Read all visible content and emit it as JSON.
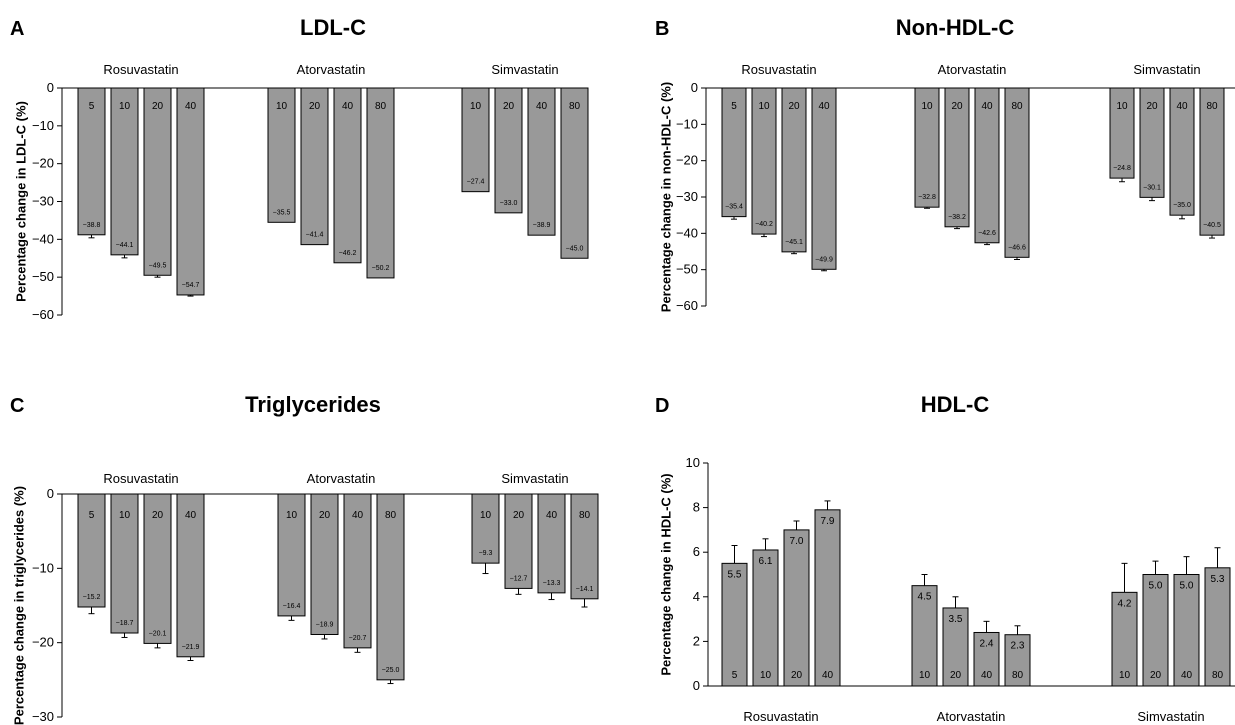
{
  "chart_data": [
    {
      "panel": "A",
      "title": "LDL-C",
      "type": "bar",
      "ylabel": "Percentage change in LDL-C (%)",
      "ylim": [
        -60,
        0
      ],
      "yticks": [
        0,
        -10,
        -20,
        -30,
        -40,
        -50,
        -60
      ],
      "ytick_labels": [
        "0",
        "−10",
        "−20",
        "−30",
        "−40",
        "−50",
        "−60"
      ],
      "groups": [
        {
          "name": "Rosuvastatin",
          "doses": [
            "5",
            "10",
            "20",
            "40"
          ],
          "values": [
            -38.8,
            -44.1,
            -49.5,
            -54.7
          ],
          "value_labels": [
            "−38.8",
            "−44.1",
            "−49.5",
            "−54.7"
          ],
          "errors": [
            0.8,
            0.8,
            0.5,
            0.3
          ]
        },
        {
          "name": "Atorvastatin",
          "doses": [
            "10",
            "20",
            "40",
            "80"
          ],
          "values": [
            -35.5,
            -41.4,
            -46.2,
            -50.2
          ],
          "value_labels": [
            "−35.5",
            "−41.4",
            "−46.2",
            "−50.2"
          ],
          "errors": [
            0,
            0,
            0,
            0
          ]
        },
        {
          "name": "Simvastatin",
          "doses": [
            "10",
            "20",
            "40",
            "80"
          ],
          "values": [
            -27.4,
            -33.0,
            -38.9,
            -45.0
          ],
          "value_labels": [
            "−27.4",
            "−33.0",
            "−38.9",
            "−45.0"
          ],
          "errors": [
            0,
            0,
            0,
            0
          ]
        }
      ]
    },
    {
      "panel": "B",
      "title": "Non-HDL-C",
      "type": "bar",
      "ylabel": "Percentage change in non-HDL-C (%)",
      "ylim": [
        -60,
        0
      ],
      "yticks": [
        0,
        -10,
        -20,
        -30,
        -40,
        -50,
        -60
      ],
      "ytick_labels": [
        "0",
        "−10",
        "−20",
        "−30",
        "−40",
        "−50",
        "−60"
      ],
      "groups": [
        {
          "name": "Rosuvastatin",
          "doses": [
            "5",
            "10",
            "20",
            "40"
          ],
          "values": [
            -35.4,
            -40.2,
            -45.1,
            -49.9
          ],
          "value_labels": [
            "−35.4",
            "−40.2",
            "−45.1",
            "−49.9"
          ],
          "errors": [
            0.7,
            0.7,
            0.5,
            0.4
          ]
        },
        {
          "name": "Atorvastatin",
          "doses": [
            "10",
            "20",
            "40",
            "80"
          ],
          "values": [
            -32.8,
            -38.2,
            -42.6,
            -46.6
          ],
          "value_labels": [
            "−32.8",
            "−38.2",
            "−42.6",
            "−46.6"
          ],
          "errors": [
            0.3,
            0.5,
            0.5,
            0.6
          ]
        },
        {
          "name": "Simvastatin",
          "doses": [
            "10",
            "20",
            "40",
            "80"
          ],
          "values": [
            -24.8,
            -30.1,
            -35.0,
            -40.5
          ],
          "value_labels": [
            "−24.8",
            "−30.1",
            "−35.0",
            "−40.5"
          ],
          "errors": [
            1.0,
            0.9,
            1.0,
            0.8
          ]
        }
      ]
    },
    {
      "panel": "C",
      "title": "Triglycerides",
      "type": "bar",
      "ylabel": "Percentage change in triglycerides (%)",
      "ylim": [
        -30,
        0
      ],
      "yticks": [
        0,
        -10,
        -20,
        -30
      ],
      "ytick_labels": [
        "0",
        "−10",
        "−20",
        "−30"
      ],
      "groups": [
        {
          "name": "Rosuvastatin",
          "doses": [
            "5",
            "10",
            "20",
            "40"
          ],
          "values": [
            -15.2,
            -18.7,
            -20.1,
            -21.9
          ],
          "value_labels": [
            "−15.2",
            "−18.7",
            "−20.1",
            "−21.9"
          ],
          "errors": [
            0.9,
            0.6,
            0.6,
            0.5
          ]
        },
        {
          "name": "Atorvastatin",
          "doses": [
            "10",
            "20",
            "40",
            "80"
          ],
          "values": [
            -16.4,
            -18.9,
            -20.7,
            -25.0
          ],
          "value_labels": [
            "−16.4",
            "−18.9",
            "−20.7",
            "−25.0"
          ],
          "errors": [
            0.6,
            0.6,
            0.6,
            0.5
          ]
        },
        {
          "name": "Simvastatin",
          "doses": [
            "10",
            "20",
            "40",
            "80"
          ],
          "values": [
            -9.3,
            -12.7,
            -13.3,
            -14.1
          ],
          "value_labels": [
            "−9.3",
            "−12.7",
            "−13.3",
            "−14.1"
          ],
          "errors": [
            1.4,
            0.8,
            0.9,
            1.1
          ]
        }
      ]
    },
    {
      "panel": "D",
      "title": "HDL-C",
      "type": "bar",
      "ylabel": "Percentage change in HDL-C (%)",
      "ylim": [
        0,
        10
      ],
      "yticks": [
        0,
        2,
        4,
        6,
        8,
        10
      ],
      "ytick_labels": [
        "0",
        "2",
        "4",
        "6",
        "8",
        "10"
      ],
      "groups": [
        {
          "name": "Rosuvastatin",
          "doses": [
            "5",
            "10",
            "20",
            "40"
          ],
          "values": [
            5.5,
            6.1,
            7.0,
            7.9
          ],
          "value_labels": [
            "5.5",
            "6.1",
            "7.0",
            "7.9"
          ],
          "errors": [
            0.8,
            0.5,
            0.4,
            0.4
          ]
        },
        {
          "name": "Atorvastatin",
          "doses": [
            "10",
            "20",
            "40",
            "80"
          ],
          "values": [
            4.5,
            3.5,
            2.4,
            2.3
          ],
          "value_labels": [
            "4.5",
            "3.5",
            "2.4",
            "2.3"
          ],
          "errors": [
            0.5,
            0.5,
            0.5,
            0.4
          ]
        },
        {
          "name": "Simvastatin",
          "doses": [
            "10",
            "20",
            "40",
            "80"
          ],
          "values": [
            4.2,
            5.0,
            5.0,
            5.3
          ],
          "value_labels": [
            "4.2",
            "5.0",
            "5.0",
            "5.3"
          ],
          "errors": [
            1.3,
            0.6,
            0.8,
            0.9
          ]
        }
      ]
    }
  ]
}
